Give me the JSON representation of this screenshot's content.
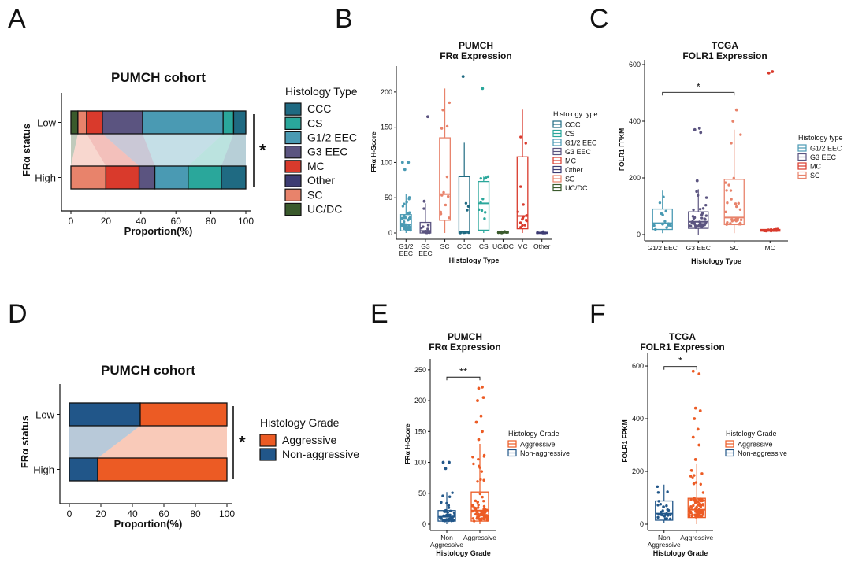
{
  "colors": {
    "CCC": "#1f6a82",
    "CS": "#2aa79b",
    "G1/2 EEC": "#4a9ab3",
    "G3 EEC": "#5b5480",
    "MC": "#d93a2c",
    "Other": "#3d3c73",
    "SC": "#e8836b",
    "UC/DC": "#3a5a2c",
    "Aggressive": "#ec5b24",
    "Non-aggressive": "#215689"
  },
  "chart_data": [
    {
      "panel": "A",
      "type": "bar",
      "orientation": "horizontal-stacked",
      "title": "PUMCH cohort",
      "ylabel": "FRα status",
      "xlabel": "Proportion(%)",
      "xlim": [
        0,
        100
      ],
      "xticks": [
        "0",
        "20",
        "40",
        "60",
        "80",
        "100"
      ],
      "categories": [
        "Low",
        "High"
      ],
      "legend_title": "Histology Type",
      "legend_position": "right",
      "significance": "*",
      "series": [
        {
          "name": "UC/DC",
          "values": [
            4,
            0
          ]
        },
        {
          "name": "SC",
          "values": [
            5,
            20
          ]
        },
        {
          "name": "MC",
          "values": [
            9,
            19
          ]
        },
        {
          "name": "G3 EEC",
          "values": [
            23,
            9
          ]
        },
        {
          "name": "G1/2 EEC",
          "values": [
            46,
            19
          ]
        },
        {
          "name": "CS",
          "values": [
            6,
            19
          ]
        },
        {
          "name": "CCC",
          "values": [
            7,
            14
          ]
        }
      ]
    },
    {
      "panel": "B",
      "type": "box",
      "title": "PUMCH",
      "subtitle": "FRα Expression",
      "xlabel": "Histology Type",
      "ylabel": "FRα H-Score",
      "ylim": [
        0,
        230
      ],
      "yticks": [
        "0",
        "50",
        "100",
        "150",
        "200"
      ],
      "categories": [
        "G1/2 EEC",
        "G3 EEC",
        "SC",
        "CCC",
        "CS",
        "UC/DC",
        "MC",
        "Other"
      ],
      "tick_labels": [
        [
          "G1/2",
          "EEC"
        ],
        [
          "G3",
          "EEC"
        ],
        [
          "SC"
        ],
        [
          "CCC"
        ],
        [
          "CS"
        ],
        [
          "UC/DC"
        ],
        [
          "MC"
        ],
        [
          "Other"
        ]
      ],
      "legend_title": "Histology type",
      "legend_position": "right",
      "legend": [
        "CCC",
        "CS",
        "G1/2 EEC",
        "G3 EEC",
        "MC",
        "Other",
        "SC",
        "UC/DC"
      ],
      "boxes": [
        {
          "name": "G1/2 EEC",
          "min": 0,
          "q1": 3,
          "median": 12,
          "q3": 26,
          "max": 55
        },
        {
          "name": "G3 EEC",
          "min": 0,
          "q1": 0,
          "median": 3,
          "q3": 15,
          "max": 42
        },
        {
          "name": "SC",
          "min": 0,
          "q1": 18,
          "median": 55,
          "q3": 135,
          "max": 205
        },
        {
          "name": "CCC",
          "min": 0,
          "q1": 0,
          "median": 2,
          "q3": 80,
          "max": 128
        },
        {
          "name": "CS",
          "min": 0,
          "q1": 4,
          "median": 42,
          "q3": 73,
          "max": 80
        },
        {
          "name": "UC/DC",
          "min": 0,
          "q1": 0,
          "median": 1,
          "q3": 2,
          "max": 3
        },
        {
          "name": "MC",
          "min": 0,
          "q1": 6,
          "median": 24,
          "q3": 108,
          "max": 175
        },
        {
          "name": "Other",
          "min": 0,
          "q1": 0,
          "median": 0,
          "q3": 1,
          "max": 2
        }
      ],
      "outliers": [
        {
          "name": "G1/2 EEC",
          "values": [
            90,
            100,
            100
          ]
        },
        {
          "name": "G3 EEC",
          "values": [
            45,
            165
          ]
        },
        {
          "name": "CCC",
          "values": [
            222
          ]
        },
        {
          "name": "CS",
          "values": [
            205
          ]
        }
      ]
    },
    {
      "panel": "C",
      "type": "box",
      "title": "TCGA",
      "subtitle": "FOLR1 Expression",
      "xlabel": "Histology Type",
      "ylabel": "FOLR1 FPKM",
      "ylim": [
        0,
        600
      ],
      "yticks": [
        "0",
        "200",
        "400",
        "600"
      ],
      "categories": [
        "G1/2 EEC",
        "G3 EEC",
        "SC",
        "MC"
      ],
      "legend_title": "Histology type",
      "legend_position": "right",
      "legend": [
        "G1/2 EEC",
        "G3 EEC",
        "MC",
        "SC"
      ],
      "significance": "*",
      "boxes": [
        {
          "name": "G1/2 EEC",
          "min": 5,
          "q1": 18,
          "median": 40,
          "q3": 90,
          "max": 155
        },
        {
          "name": "G3 EEC",
          "min": 0,
          "q1": 22,
          "median": 45,
          "q3": 80,
          "max": 160
        },
        {
          "name": "SC",
          "min": 5,
          "q1": 35,
          "median": 60,
          "q3": 195,
          "max": 370
        },
        {
          "name": "MC",
          "min": 10,
          "q1": 12,
          "median": 15,
          "q3": 18,
          "max": 20
        }
      ],
      "outliers": [
        {
          "name": "G3 EEC",
          "values": [
            190,
            360,
            370,
            375
          ]
        },
        {
          "name": "SC",
          "values": [
            400,
            440
          ]
        },
        {
          "name": "MC",
          "values": [
            570,
            575
          ]
        }
      ]
    },
    {
      "panel": "D",
      "type": "bar",
      "orientation": "horizontal-stacked",
      "title": "PUMCH cohort",
      "ylabel": "FRα status",
      "xlabel": "Proportion(%)",
      "xlim": [
        0,
        100
      ],
      "xticks": [
        "0",
        "20",
        "40",
        "60",
        "80",
        "100"
      ],
      "categories": [
        "Low",
        "High"
      ],
      "legend_title": "Histology Grade",
      "legend_position": "right",
      "significance": "*",
      "series": [
        {
          "name": "Non-aggressive",
          "values": [
            45,
            18
          ]
        },
        {
          "name": "Aggressive",
          "values": [
            55,
            82
          ]
        }
      ]
    },
    {
      "panel": "E",
      "type": "box",
      "title": "PUMCH",
      "subtitle": "FRα Expression",
      "xlabel": "Histology Grade",
      "ylabel": "FRα H-Score",
      "ylim": [
        0,
        260
      ],
      "yticks": [
        "0",
        "50",
        "100",
        "150",
        "200",
        "250"
      ],
      "categories": [
        "Non-aggressive",
        "Aggressive"
      ],
      "tick_labels": [
        [
          "Non",
          "Aggressive"
        ],
        [
          "Aggressive"
        ]
      ],
      "legend_title": "Histology Grade",
      "legend_position": "right",
      "legend": [
        "Aggressive",
        "Non-aggressive"
      ],
      "significance": "**",
      "boxes": [
        {
          "name": "Non-aggressive",
          "min": 0,
          "q1": 5,
          "median": 12,
          "q3": 22,
          "max": 52
        },
        {
          "name": "Aggressive",
          "min": 0,
          "q1": 5,
          "median": 22,
          "q3": 52,
          "max": 130
        }
      ],
      "outliers": [
        {
          "name": "Non-aggressive",
          "values": [
            90,
            100,
            100
          ]
        },
        {
          "name": "Aggressive",
          "values": [
            137,
            150,
            165,
            175,
            200,
            205,
            220,
            222
          ]
        }
      ]
    },
    {
      "panel": "F",
      "type": "box",
      "title": "TCGA",
      "subtitle": "FOLR1 Expression",
      "xlabel": "Histology Grade",
      "ylabel": "FOLR1 FPKM",
      "ylim": [
        0,
        630
      ],
      "yticks": [
        "0",
        "200",
        "400",
        "600"
      ],
      "categories": [
        "Non-aggressive",
        "Aggressive"
      ],
      "tick_labels": [
        [
          "Non",
          "Aggressive"
        ],
        [
          "Aggressive"
        ]
      ],
      "legend_title": "Histology Grade",
      "legend_position": "right",
      "legend": [
        "Aggressive",
        "Non-aggressive"
      ],
      "significance": "*",
      "boxes": [
        {
          "name": "Non-aggressive",
          "min": 5,
          "q1": 15,
          "median": 40,
          "q3": 88,
          "max": 150
        },
        {
          "name": "Aggressive",
          "min": 0,
          "q1": 25,
          "median": 55,
          "q3": 98,
          "max": 230
        }
      ],
      "outliers": [
        {
          "name": "Aggressive",
          "values": [
            245,
            300,
            330,
            360,
            400,
            430,
            440,
            570,
            580
          ]
        }
      ]
    }
  ]
}
